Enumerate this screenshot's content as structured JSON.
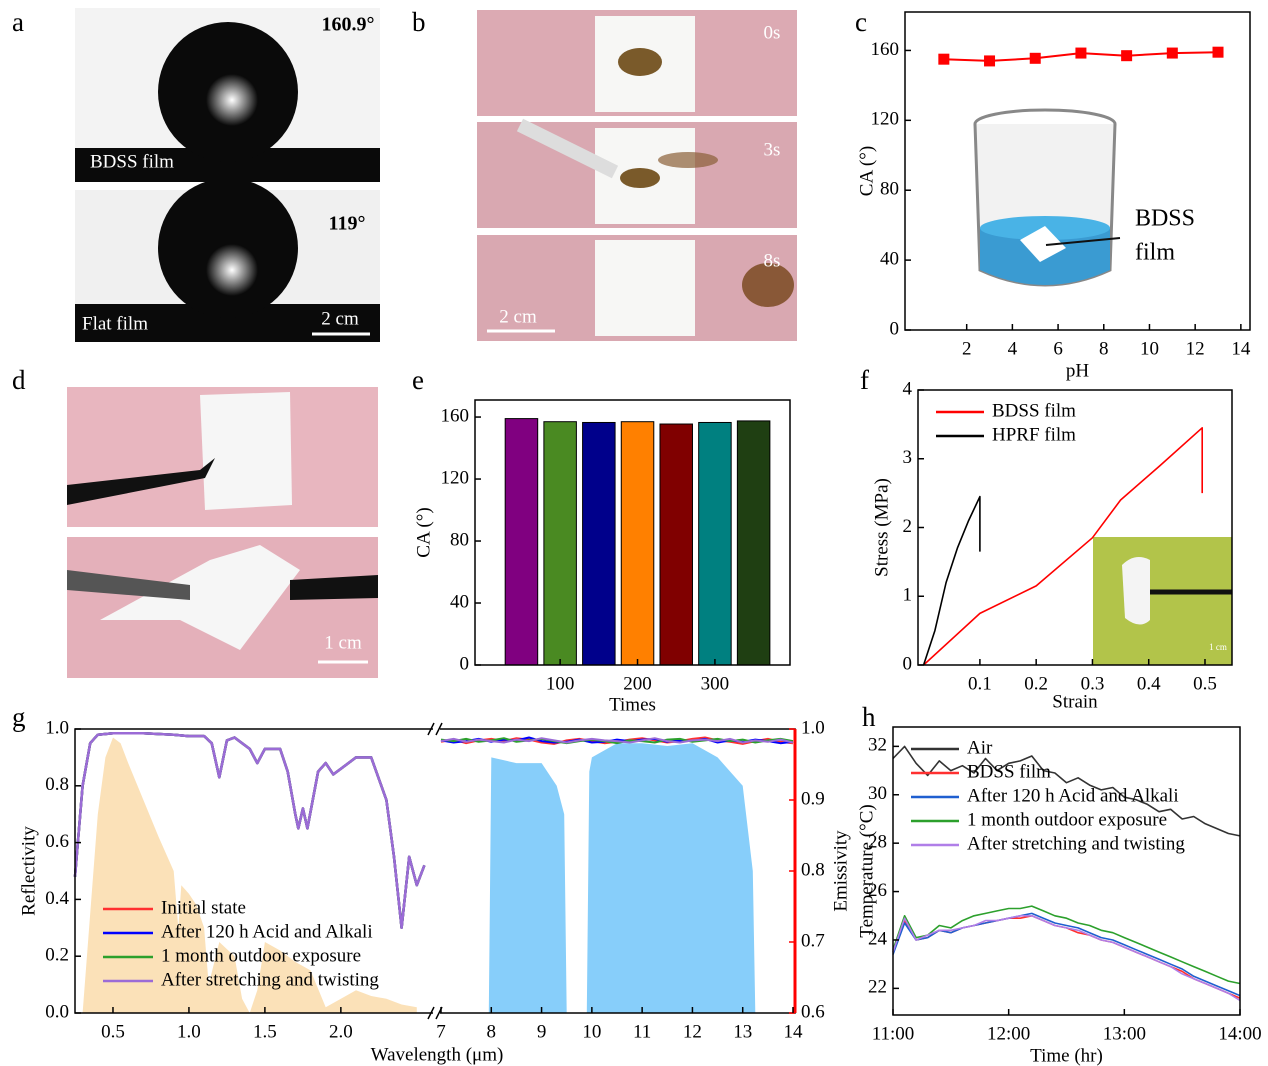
{
  "panels": {
    "a": {
      "label": "a",
      "bdss_angle": "160.9°",
      "bdss_caption": "BDSS film",
      "flat_angle": "119°",
      "flat_caption": "Flat film",
      "scale": "2 cm"
    },
    "b": {
      "label": "b",
      "times": [
        "0s",
        "3s",
        "8s"
      ],
      "scale": "2 cm"
    },
    "d": {
      "label": "d",
      "scale": "1 cm"
    }
  },
  "chart_data": [
    {
      "type": "line",
      "panel": "c",
      "xlabel": "pH",
      "ylabel": "CA (°)",
      "markers": true,
      "color": "#ff0000",
      "x": [
        1,
        3,
        5,
        7,
        9,
        11,
        13
      ],
      "values": [
        155,
        154,
        155.5,
        158.5,
        157,
        158.5,
        159
      ],
      "xlim": [
        -0.7,
        14.4
      ],
      "xticks": [
        2,
        4,
        6,
        8,
        10,
        12,
        14
      ],
      "ylim": [
        0,
        182
      ],
      "yticks": [
        0,
        40,
        80,
        120,
        160
      ],
      "inset_text": [
        "BDSS",
        "film"
      ]
    },
    {
      "type": "bar",
      "panel": "e",
      "xlabel": "Times",
      "ylabel": "CA (°)",
      "x": [
        50,
        100,
        150,
        200,
        250,
        300,
        350
      ],
      "values": [
        159,
        157,
        156.5,
        157,
        155.5,
        156.5,
        157.5
      ],
      "colors": [
        "#800080",
        "#4a8a22",
        "#00008b",
        "#ff8000",
        "#800000",
        "#008080",
        "#1f3f12"
      ],
      "xlim": [
        -10,
        397
      ],
      "xticks": [
        100,
        200,
        300
      ],
      "ylim": [
        0,
        171
      ],
      "yticks": [
        0,
        40,
        80,
        120,
        160
      ]
    },
    {
      "type": "line",
      "panel": "f",
      "xlabel": "Strain",
      "ylabel": "Stress (MPa)",
      "legend": "upper left",
      "series": [
        {
          "name": "BDSS film",
          "color": "#ff0000",
          "x": [
            0,
            0.1,
            0.2,
            0.3,
            0.35,
            0.42,
            0.495,
            0.495
          ],
          "values": [
            0,
            0.75,
            1.15,
            1.85,
            2.4,
            2.9,
            3.45,
            2.5
          ]
        },
        {
          "name": "HPRF film",
          "color": "#000000",
          "x": [
            0,
            0.02,
            0.04,
            0.06,
            0.08,
            0.1,
            0.1
          ],
          "values": [
            0,
            0.5,
            1.2,
            1.7,
            2.1,
            2.45,
            1.65
          ]
        }
      ],
      "xlim": [
        -0.01,
        0.548
      ],
      "xticks": [
        0.1,
        0.2,
        0.3,
        0.4,
        0.5
      ],
      "ylim": [
        0,
        4
      ],
      "yticks": [
        0,
        1,
        2,
        3,
        4
      ],
      "inset_scale": "1 cm"
    },
    {
      "type": "spectrum",
      "panel": "g",
      "xlabel": "Wavelength (μm)",
      "ylabel": "Reflectivity",
      "y2label": "Emissivity",
      "y2color": "#ff0000",
      "legend": "lower left",
      "x_segments": [
        {
          "xlim": [
            0.25,
            2.6
          ],
          "xticks": [
            0.5,
            {
              "value": 1,
              "label": "1.0"
            },
            1.5,
            {
              "value": 2,
              "label": "2.0"
            }
          ]
        },
        {
          "xlim": [
            7,
            14
          ],
          "xticks": [
            7,
            8,
            9,
            10,
            11,
            12,
            13,
            14
          ]
        }
      ],
      "ylim": [
        0,
        1
      ],
      "yticks": [
        {
          "value": 0,
          "label": "0.0"
        },
        0.2,
        0.4,
        0.6,
        0.8,
        {
          "value": 1,
          "label": "1.0"
        }
      ],
      "y2lim": [
        0.6,
        1
      ],
      "y2ticks": [
        0.6,
        0.7,
        0.8,
        0.9,
        {
          "value": 1,
          "label": "1.0"
        }
      ],
      "areas": [
        {
          "segment": 0,
          "color": "#fbe1b8",
          "x": [
            0.3,
            0.4,
            0.45,
            0.5,
            0.55,
            0.6,
            0.7,
            0.8,
            0.9,
            0.93,
            0.95,
            1.0,
            1.05,
            1.1,
            1.13,
            1.2,
            1.3,
            1.35,
            1.4,
            1.45,
            1.5,
            1.6,
            1.7,
            1.8,
            1.9,
            2.0,
            2.1,
            2.2,
            2.3,
            2.4,
            2.5
          ],
          "values": [
            0,
            0.7,
            0.9,
            0.97,
            0.95,
            0.88,
            0.75,
            0.62,
            0.5,
            0.3,
            0.45,
            0.42,
            0.38,
            0.3,
            0.1,
            0.25,
            0.2,
            0.05,
            0,
            0.08,
            0.25,
            0.22,
            0.18,
            0.15,
            0.02,
            0.05,
            0.08,
            0.06,
            0.05,
            0.03,
            0.02
          ]
        },
        {
          "segment": 1,
          "color": "#87cefa",
          "x": [
            7.95,
            8.0,
            8.5,
            9.0,
            9.3,
            9.45,
            9.5,
            9.9,
            9.95,
            10.0,
            10.5,
            11.0,
            11.5,
            12.0,
            12.5,
            13.0,
            13.2,
            13.25
          ],
          "values": [
            0,
            0.9,
            0.88,
            0.88,
            0.8,
            0.7,
            0,
            0,
            0.85,
            0.9,
            0.95,
            0.95,
            0.94,
            0.95,
            0.9,
            0.8,
            0.5,
            0
          ]
        }
      ],
      "x": [
        0.25,
        0.3,
        0.35,
        0.4,
        0.5,
        0.7,
        0.9,
        1.0,
        1.1,
        1.15,
        1.2,
        1.25,
        1.3,
        1.4,
        1.45,
        1.5,
        1.6,
        1.65,
        1.7,
        1.72,
        1.75,
        1.78,
        1.85,
        1.9,
        1.95,
        2.0,
        2.1,
        2.2,
        2.3,
        2.35,
        2.4,
        2.45,
        2.5,
        2.55
      ],
      "emissivity_x": [
        7,
        7.25,
        7.5,
        7.75,
        8,
        8.25,
        8.5,
        8.75,
        9,
        9.25,
        9.5,
        9.75,
        10,
        10.25,
        10.5,
        10.75,
        11,
        11.25,
        11.5,
        11.75,
        12,
        12.25,
        12.5,
        12.75,
        13,
        13.25,
        13.5,
        13.75,
        14
      ],
      "series": [
        {
          "name": "Initial state",
          "color": "#ff3030",
          "values": [
            0.48,
            0.8,
            0.95,
            0.98,
            0.985,
            0.985,
            0.98,
            0.975,
            0.975,
            0.95,
            0.83,
            0.96,
            0.97,
            0.93,
            0.88,
            0.93,
            0.93,
            0.85,
            0.7,
            0.65,
            0.72,
            0.65,
            0.85,
            0.88,
            0.84,
            0.86,
            0.9,
            0.9,
            0.75,
            0.55,
            0.3,
            0.55,
            0.45,
            0.52
          ],
          "emissivity": [
            0.982,
            0.985,
            0.98,
            0.984,
            0.986,
            0.983,
            0.987,
            0.985,
            0.981,
            0.979,
            0.984,
            0.986,
            0.983,
            0.98,
            0.982,
            0.985,
            0.987,
            0.984,
            0.981,
            0.983,
            0.986,
            0.988,
            0.984,
            0.982,
            0.979,
            0.983,
            0.986,
            0.982,
            0.98
          ]
        },
        {
          "name": "After 120 h Acid and Alkali",
          "color": "#0000ff",
          "values": [
            0.48,
            0.8,
            0.95,
            0.98,
            0.985,
            0.985,
            0.98,
            0.975,
            0.975,
            0.95,
            0.83,
            0.96,
            0.97,
            0.93,
            0.88,
            0.93,
            0.93,
            0.85,
            0.7,
            0.65,
            0.72,
            0.65,
            0.85,
            0.88,
            0.84,
            0.86,
            0.9,
            0.9,
            0.75,
            0.55,
            0.3,
            0.55,
            0.45,
            0.52
          ],
          "emissivity": [
            0.984,
            0.981,
            0.983,
            0.986,
            0.982,
            0.985,
            0.984,
            0.988,
            0.983,
            0.981,
            0.982,
            0.985,
            0.981,
            0.982,
            0.985,
            0.983,
            0.985,
            0.986,
            0.982,
            0.984,
            0.983,
            0.986,
            0.981,
            0.984,
            0.982,
            0.985,
            0.983,
            0.98,
            0.982
          ]
        },
        {
          "name": "1 month outdoor exposure",
          "color": "#2ca02c",
          "values": [
            0.48,
            0.8,
            0.95,
            0.98,
            0.985,
            0.985,
            0.98,
            0.975,
            0.975,
            0.95,
            0.83,
            0.96,
            0.97,
            0.93,
            0.88,
            0.93,
            0.93,
            0.85,
            0.7,
            0.65,
            0.72,
            0.65,
            0.85,
            0.88,
            0.84,
            0.86,
            0.9,
            0.9,
            0.75,
            0.55,
            0.3,
            0.55,
            0.45,
            0.52
          ],
          "emissivity": [
            0.985,
            0.983,
            0.986,
            0.982,
            0.984,
            0.987,
            0.982,
            0.984,
            0.986,
            0.983,
            0.98,
            0.983,
            0.985,
            0.983,
            0.98,
            0.984,
            0.983,
            0.981,
            0.985,
            0.986,
            0.982,
            0.984,
            0.986,
            0.983,
            0.985,
            0.981,
            0.984,
            0.986,
            0.983
          ]
        },
        {
          "name": "After stretching and twisting",
          "color": "#9b6bd6",
          "values": [
            0.48,
            0.8,
            0.95,
            0.98,
            0.985,
            0.985,
            0.98,
            0.975,
            0.975,
            0.95,
            0.83,
            0.96,
            0.97,
            0.93,
            0.88,
            0.93,
            0.93,
            0.85,
            0.7,
            0.65,
            0.72,
            0.65,
            0.85,
            0.88,
            0.84,
            0.86,
            0.9,
            0.9,
            0.75,
            0.55,
            0.3,
            0.55,
            0.45,
            0.52
          ],
          "emissivity": [
            0.983,
            0.986,
            0.982,
            0.985,
            0.983,
            0.981,
            0.985,
            0.983,
            0.987,
            0.984,
            0.981,
            0.984,
            0.986,
            0.984,
            0.983,
            0.981,
            0.984,
            0.987,
            0.983,
            0.981,
            0.984,
            0.985,
            0.983,
            0.986,
            0.981,
            0.984,
            0.982,
            0.985,
            0.981
          ]
        }
      ]
    },
    {
      "type": "line",
      "panel": "h",
      "xlabel": "Time (hr)",
      "ylabel": "Temperature (°C)",
      "legend": "upper left",
      "x": [
        11,
        11.1,
        11.2,
        11.3,
        11.4,
        11.5,
        11.6,
        11.7,
        11.8,
        11.9,
        12,
        12.1,
        12.2,
        12.3,
        12.4,
        12.5,
        12.6,
        12.7,
        12.8,
        12.9,
        13,
        13.1,
        13.2,
        13.3,
        13.4,
        13.5,
        13.6,
        13.7,
        13.8,
        13.9,
        14
      ],
      "xlim": [
        11,
        14
      ],
      "xticks": [
        {
          "value": 11,
          "label": "11:00"
        },
        {
          "value": 12,
          "label": "12:00"
        },
        {
          "value": 13,
          "label": "13:00"
        },
        {
          "value": 14,
          "label": "14:00"
        }
      ],
      "ylim": [
        20.9,
        32.8
      ],
      "yticks": [
        22,
        24,
        26,
        28,
        30,
        32
      ],
      "series": [
        {
          "name": "Air",
          "color": "#333333",
          "values": [
            31.5,
            32.0,
            31.3,
            30.8,
            31.4,
            31.0,
            31.2,
            30.9,
            31.5,
            31.0,
            31.3,
            31.4,
            31.6,
            31.0,
            30.9,
            30.5,
            30.7,
            30.4,
            30.2,
            30.3,
            29.9,
            29.8,
            29.6,
            29.3,
            29.4,
            29.0,
            29.1,
            28.8,
            28.6,
            28.4,
            28.3
          ]
        },
        {
          "name": "BDSS film",
          "color": "#ff3030",
          "values": [
            23.5,
            24.8,
            24.0,
            24.1,
            24.4,
            24.3,
            24.5,
            24.6,
            24.7,
            24.8,
            24.9,
            24.9,
            25.0,
            24.8,
            24.6,
            24.5,
            24.3,
            24.2,
            24.0,
            23.9,
            23.7,
            23.5,
            23.3,
            23.1,
            22.9,
            22.7,
            22.4,
            22.2,
            22.0,
            21.8,
            21.6
          ]
        },
        {
          "name": "After 120 h Acid and Alkali",
          "color": "#1f5fd0",
          "values": [
            23.4,
            24.7,
            24.0,
            24.1,
            24.4,
            24.3,
            24.5,
            24.6,
            24.7,
            24.8,
            24.9,
            25.0,
            25.1,
            24.9,
            24.7,
            24.6,
            24.5,
            24.3,
            24.1,
            24.0,
            23.8,
            23.6,
            23.4,
            23.2,
            23.0,
            22.8,
            22.5,
            22.3,
            22.1,
            21.9,
            21.7
          ]
        },
        {
          "name": "1 month outdoor exposure",
          "color": "#2ca02c",
          "values": [
            23.6,
            25.0,
            24.1,
            24.2,
            24.6,
            24.5,
            24.8,
            25.0,
            25.1,
            25.2,
            25.3,
            25.3,
            25.4,
            25.2,
            25.0,
            24.9,
            24.7,
            24.6,
            24.4,
            24.3,
            24.1,
            23.9,
            23.7,
            23.5,
            23.3,
            23.1,
            22.9,
            22.7,
            22.5,
            22.3,
            22.2
          ]
        },
        {
          "name": "After stretching and twisting",
          "color": "#b07ee8",
          "values": [
            23.5,
            24.9,
            24.0,
            24.2,
            24.4,
            24.4,
            24.5,
            24.6,
            24.8,
            24.8,
            24.9,
            25.0,
            25.0,
            24.8,
            24.6,
            24.5,
            24.4,
            24.2,
            24.0,
            23.9,
            23.7,
            23.5,
            23.3,
            23.1,
            22.9,
            22.6,
            22.4,
            22.2,
            22.0,
            21.8,
            21.5
          ]
        }
      ]
    }
  ]
}
